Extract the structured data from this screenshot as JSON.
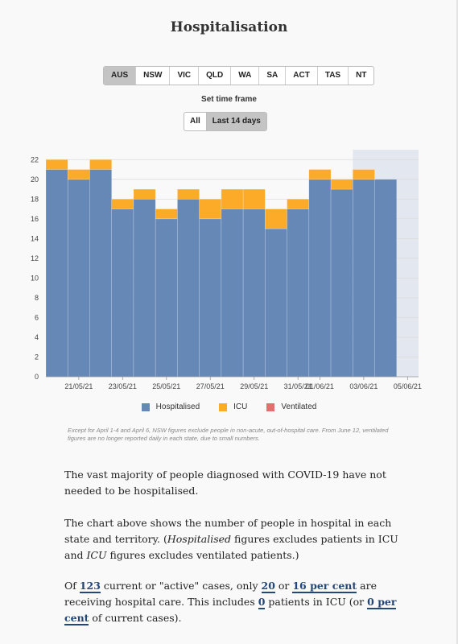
{
  "title": "Hospitalisation",
  "states": [
    "AUS",
    "NSW",
    "VIC",
    "QLD",
    "WA",
    "SA",
    "ACT",
    "TAS",
    "NT"
  ],
  "active_state": "AUS",
  "time_frame": {
    "label": "Set time frame",
    "options": [
      "All",
      "Last 14 days"
    ],
    "active": "Last 14 days"
  },
  "chart_data": {
    "type": "bar",
    "stacked": true,
    "dates": [
      "2021-05-20",
      "2021-05-21",
      "2021-05-22",
      "2021-05-23",
      "2021-05-24",
      "2021-05-25",
      "2021-05-26",
      "2021-05-27",
      "2021-05-28",
      "2021-05-29",
      "2021-05-30",
      "2021-05-31",
      "2021-06-01",
      "2021-06-02",
      "2021-06-03",
      "2021-06-04"
    ],
    "series": [
      {
        "name": "Hospitalised",
        "color": "#6588b7",
        "values": [
          21,
          20,
          21,
          17,
          18,
          16,
          18,
          16,
          17,
          17,
          15,
          17,
          20,
          19,
          20,
          20
        ]
      },
      {
        "name": "ICU",
        "color": "#fcab29",
        "values": [
          1,
          1,
          1,
          1,
          1,
          1,
          1,
          2,
          2,
          2,
          2,
          1,
          1,
          1,
          1,
          0
        ]
      },
      {
        "name": "Ventilated",
        "color": "#e56f6f",
        "values": [
          0,
          0,
          0,
          0,
          0,
          0,
          0,
          0,
          0,
          0,
          0,
          0,
          0,
          0,
          0,
          0
        ]
      }
    ],
    "y_ticks": [
      0,
      2,
      4,
      6,
      8,
      10,
      12,
      14,
      16,
      18,
      20,
      22
    ],
    "ylim": [
      0,
      23
    ],
    "x_ticks": [
      "21/05/21",
      "23/05/21",
      "25/05/21",
      "27/05/21",
      "29/05/21",
      "31/05/21",
      "01/06/21",
      "03/06/21",
      "05/06/21"
    ],
    "x_tick_dates": [
      "2021-05-21",
      "2021-05-23",
      "2021-05-25",
      "2021-05-27",
      "2021-05-29",
      "2021-05-31",
      "2021-06-01",
      "2021-06-03",
      "2021-06-05"
    ],
    "shaded_range": [
      "2021-06-03",
      "2021-06-06"
    ],
    "xlim": [
      "2021-05-20",
      "2021-06-06"
    ],
    "grid": true
  },
  "note": "Except for April 1-4 and April 6, NSW figures exclude people in non-acute, out-of-hospital care. From June 12, ventilated figures are no longer reported daily in each state, due to small numbers.",
  "article": {
    "p1": "The vast majority of people diagnosed with COVID-19 have not needed to be hospitalised.",
    "p2_a": "The chart above shows the number of people in hospital in each state and territory. (",
    "p2_b": "Hospitalised",
    "p2_c": " figures excludes patients in ICU and ",
    "p2_d": "ICU",
    "p2_e": " figures excludes ventilated patients.)",
    "p3": {
      "t1": "Of ",
      "cases": "123",
      "t2": " current or \"active\" cases, only ",
      "hosp": "20",
      "t3": " or ",
      "pct": "16 per cent",
      "t4": " are receiving hospital care. This includes ",
      "icu": "0",
      "t5": " patients in ICU (or ",
      "icu_pct": "0 per cent",
      "t6": " of current cases)."
    }
  }
}
